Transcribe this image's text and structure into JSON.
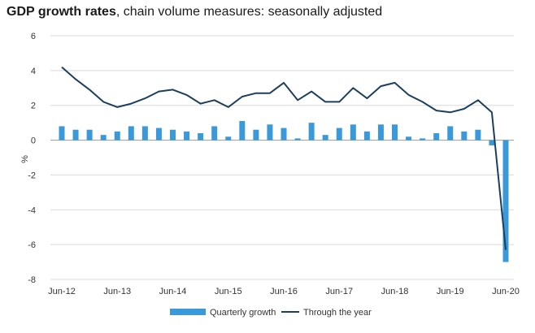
{
  "title": {
    "bold": "GDP growth rates",
    "rest": ", chain volume measures: seasonally adjusted"
  },
  "chart_data": {
    "type": "bar",
    "title": "GDP growth rates, chain volume measures: seasonally adjusted",
    "ylabel": "%",
    "ylim": [
      -8,
      6
    ],
    "yticks": [
      "6",
      "4",
      "2",
      "0",
      "-2",
      "-4",
      "-6",
      "-8"
    ],
    "grid": true,
    "legend_position": "bottom-center",
    "x": [
      "Jun-12",
      "Sep-12",
      "Dec-12",
      "Mar-13",
      "Jun-13",
      "Sep-13",
      "Dec-13",
      "Mar-14",
      "Jun-14",
      "Sep-14",
      "Dec-14",
      "Mar-15",
      "Jun-15",
      "Sep-15",
      "Dec-15",
      "Mar-16",
      "Jun-16",
      "Sep-16",
      "Dec-16",
      "Mar-17",
      "Jun-17",
      "Sep-17",
      "Dec-17",
      "Mar-18",
      "Jun-18",
      "Sep-18",
      "Dec-18",
      "Mar-19",
      "Jun-19",
      "Sep-19",
      "Dec-19",
      "Mar-20",
      "Jun-20"
    ],
    "xtick_labels": [
      "Jun-12",
      "Jun-13",
      "Jun-14",
      "Jun-15",
      "Jun-16",
      "Jun-17",
      "Jun-18",
      "Jun-19",
      "Jun-20"
    ],
    "series": [
      {
        "name": "Quarterly growth",
        "type": "bar",
        "color": "#3a9ad9",
        "values": [
          0.8,
          0.6,
          0.6,
          0.3,
          0.5,
          0.8,
          0.8,
          0.7,
          0.6,
          0.5,
          0.4,
          0.8,
          0.2,
          1.1,
          0.6,
          0.9,
          0.7,
          0.1,
          1.0,
          0.3,
          0.7,
          0.9,
          0.5,
          0.9,
          0.9,
          0.2,
          0.1,
          0.4,
          0.8,
          0.5,
          0.6,
          -0.3,
          -7.0
        ]
      },
      {
        "name": "Through the year",
        "type": "line",
        "color": "#1d3f5e",
        "values": [
          4.2,
          3.5,
          2.9,
          2.2,
          1.9,
          2.1,
          2.4,
          2.8,
          2.9,
          2.6,
          2.1,
          2.3,
          1.9,
          2.5,
          2.7,
          2.7,
          3.3,
          2.3,
          2.8,
          2.2,
          2.2,
          3.0,
          2.4,
          3.1,
          3.3,
          2.6,
          2.2,
          1.7,
          1.6,
          1.8,
          2.3,
          1.6,
          -6.3
        ]
      }
    ]
  }
}
